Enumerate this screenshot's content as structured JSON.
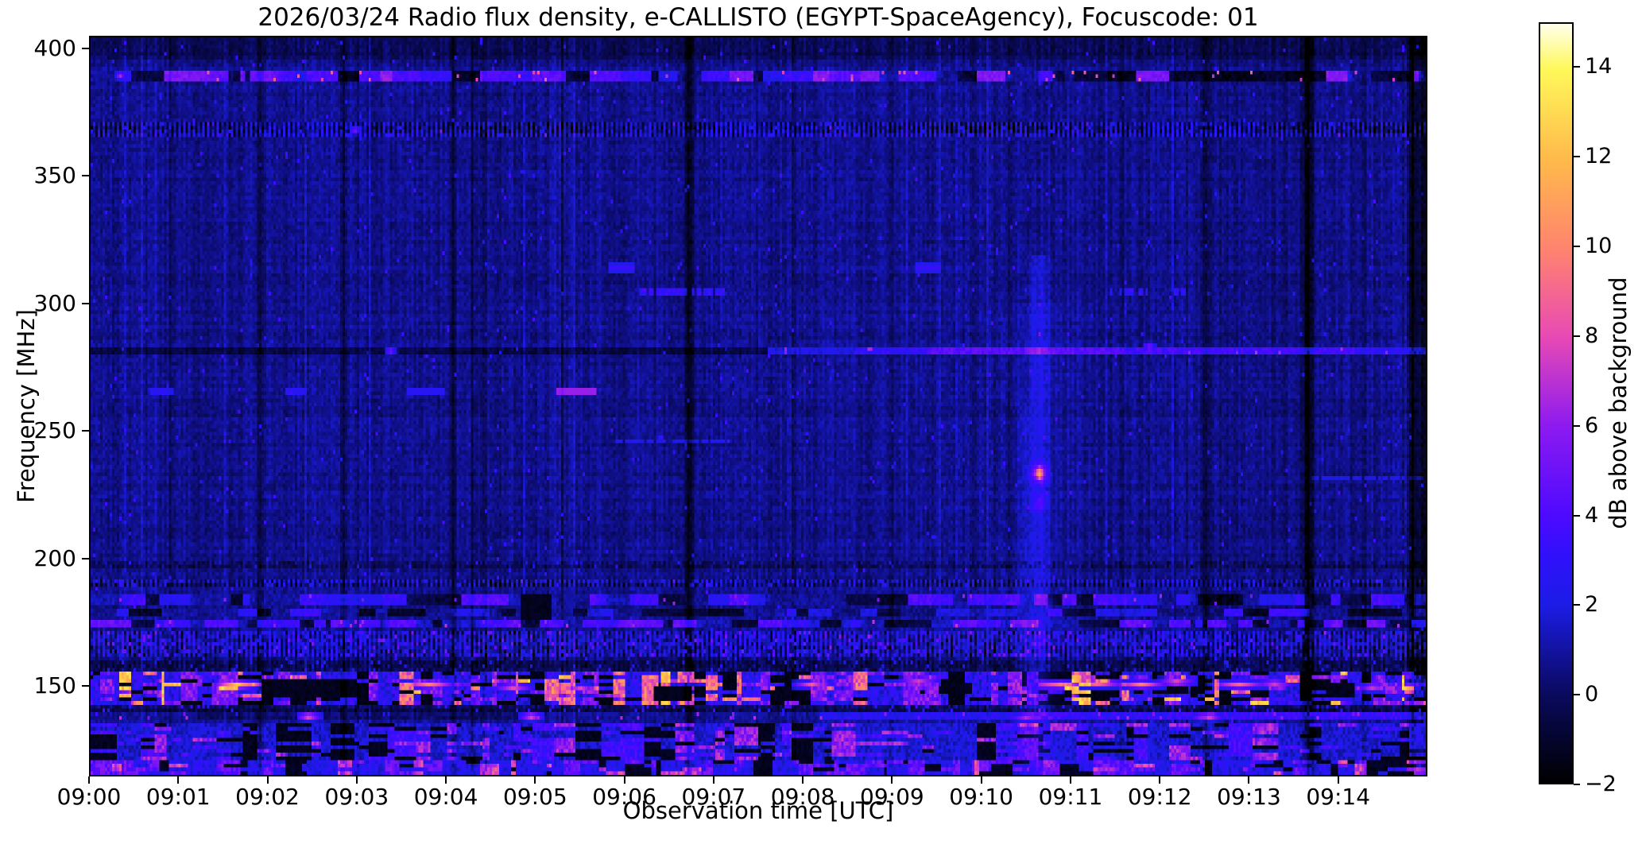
{
  "chart_data": {
    "type": "heatmap",
    "title": "2026/03/24  Radio flux density, e-CALLISTO (EGYPT-SpaceAgency), Focuscode: 01",
    "xlabel": "Observation time [UTC]",
    "ylabel": "Frequency [MHz]",
    "colorbar_label": "dB above background",
    "x_tick_labels": [
      "09:00",
      "09:01",
      "09:02",
      "09:03",
      "09:04",
      "09:05",
      "09:06",
      "09:07",
      "09:08",
      "09:09",
      "09:10",
      "09:11",
      "09:12",
      "09:13",
      "09:14"
    ],
    "x_range_minutes": [
      0,
      15
    ],
    "y_tick_values": [
      400,
      350,
      300,
      250,
      200,
      150
    ],
    "y_tick_labels": [
      "400",
      "350",
      "300",
      "250",
      "200",
      "150"
    ],
    "freq_range_mhz": [
      114.5,
      405
    ],
    "value_range_db": [
      -2,
      15
    ],
    "colorbar_tick_values": [
      14,
      12,
      10,
      8,
      6,
      4,
      2,
      0,
      -2
    ],
    "colorbar_tick_labels": [
      "14",
      "12",
      "10",
      "8",
      "6",
      "4",
      "2",
      "0",
      "−2"
    ],
    "grid": false,
    "colormap": {
      "name": "gnuplot2-like",
      "stops": [
        [
          0.0,
          "#000000"
        ],
        [
          0.118,
          "#0a0a5f"
        ],
        [
          0.235,
          "#1c1ce6"
        ],
        [
          0.3,
          "#3010fc"
        ],
        [
          0.353,
          "#4e0aff"
        ],
        [
          0.47,
          "#8c1af0"
        ],
        [
          0.588,
          "#e84ab4"
        ],
        [
          0.7,
          "#ff8270"
        ],
        [
          0.82,
          "#ffb94b"
        ],
        [
          0.94,
          "#fff85a"
        ],
        [
          1.0,
          "#ffffeb"
        ]
      ]
    },
    "noise": {
      "seed": 73,
      "base_db": 0.55,
      "cell_db": 0.5,
      "col_db": 0.4,
      "row_db": 0.2,
      "bright_speck_p": 0.01,
      "bright_speck_db": [
        2.2,
        3.8
      ],
      "top_dark_above_mhz": 397
    },
    "h_bands": [
      {
        "name": "band-390",
        "f": [
          387.5,
          392.5
        ],
        "type": "runs",
        "bright": [
          2.2,
          6.5
        ],
        "dim": [
          0.4,
          1.6
        ],
        "dark": [
          -1.8,
          -0.8
        ],
        "p_bright": 0.55,
        "p_dim": 0.25,
        "run_min": 0.04,
        "run_max": 0.38,
        "spike_p": 0.02,
        "spike": [
          7,
          9
        ],
        "dark_after_t": 8.8,
        "p_bright_late": 0.33
      },
      {
        "name": "comb-368",
        "f": [
          366,
          371
        ],
        "type": "comb",
        "even": 1.2,
        "odd": -1.2,
        "jitter": 1.1,
        "speck_p": 0.03,
        "speck": [
          2.5,
          4.5
        ]
      },
      {
        "name": "blobs-314",
        "f": [
          312.5,
          316
        ],
        "type": "dots",
        "t": [
          5.95,
          9.4
        ],
        "v": 3.4,
        "w": 0.12,
        "t_hot": [],
        "v_hot": 0
      },
      {
        "name": "dashes-304",
        "f": [
          302.8,
          305.6
        ],
        "type": "dash-seg",
        "segments": [
          [
            6.18,
            7.08
          ],
          [
            11.47,
            11.92
          ],
          [
            12.18,
            12.26
          ]
        ],
        "v": [
          2.8,
          4.2
        ],
        "gap_p": 0.3
      },
      {
        "name": "dark-281-left",
        "f": [
          280,
          283.5
        ],
        "type": "add-seg",
        "segments": [
          [
            0,
            7.6,
            -1.25
          ]
        ]
      },
      {
        "name": "line-281",
        "f": [
          280.2,
          282.8
        ],
        "type": "line",
        "segments": [
          [
            7.6,
            8.6,
            2.6
          ],
          [
            8.6,
            9.4,
            3.6
          ],
          [
            9.4,
            11.6,
            4.8
          ],
          [
            11.6,
            14.2,
            4.2
          ],
          [
            14.2,
            15,
            3.4
          ]
        ],
        "jitter": 0.7,
        "speck_p": 0.015,
        "speck": [
          6,
          7.5
        ]
      },
      {
        "name": "dots-265",
        "f": [
          263.5,
          266.5
        ],
        "type": "dots",
        "t": [
          0.73,
          0.84,
          2.25,
          2.35,
          3.6,
          3.75,
          3.9
        ],
        "v": 3.2,
        "w": 0.05,
        "t_hot": [
          5.3,
          5.45,
          5.6
        ],
        "v_hot": 6.8
      },
      {
        "name": "dashes-246",
        "f": [
          245,
          247.2
        ],
        "type": "dash-seg",
        "segments": [
          [
            5.9,
            7.15
          ]
        ],
        "v": [
          1.8,
          2.6
        ],
        "gap_p": 0.35
      },
      {
        "name": "dashes-231",
        "f": [
          230,
          232.5
        ],
        "type": "dash-seg",
        "segments": [
          [
            13.7,
            15
          ]
        ],
        "v": [
          1.8,
          2.4
        ],
        "gap_p": 0.25
      },
      {
        "name": "dark-197",
        "f": [
          196,
          198.5
        ],
        "type": "comb",
        "even": -0.55,
        "odd": -0.1,
        "jitter": 0.5,
        "speck_p": 0.02,
        "speck": [
          1.5,
          2.5
        ]
      },
      {
        "name": "comb-190",
        "f": [
          188,
          191.5
        ],
        "type": "comb",
        "even": 0.9,
        "odd": -0.9,
        "jitter": 0.9,
        "speck_p": 0.05,
        "speck": [
          2,
          3.5
        ]
      },
      {
        "name": "blobs-183",
        "f": [
          181.5,
          186
        ],
        "type": "runs",
        "bright": [
          2.2,
          4.4
        ],
        "dim": [
          0.5,
          1.4
        ],
        "dark": [
          -1.6,
          -0.6
        ],
        "p_bright": 0.5,
        "p_dim": 0.25,
        "run_min": 0.05,
        "run_max": 0.4,
        "spike_p": 0.01,
        "spike": [
          5.5,
          6.5
        ]
      },
      {
        "name": "blobs-178",
        "f": [
          176.5,
          180.5
        ],
        "type": "runs",
        "bright": [
          1.8,
          3.6
        ],
        "dim": [
          0.3,
          1.2
        ],
        "dark": [
          -1.7,
          -0.8
        ],
        "p_bright": 0.45,
        "p_dim": 0.3,
        "run_min": 0.06,
        "run_max": 0.45
      },
      {
        "name": "dashes-174",
        "f": [
          172.8,
          175.8
        ],
        "type": "runs",
        "bright": [
          2.8,
          5
        ],
        "dim": [
          0.8,
          1.8
        ],
        "dark": [
          -1.4,
          -0.4
        ],
        "p_bright": 0.55,
        "p_dim": 0.25,
        "run_min": 0.04,
        "run_max": 0.3,
        "spike_p": 0.02,
        "spike": [
          6,
          7.5
        ]
      },
      {
        "name": "comb-167",
        "f": [
          161.5,
          171.5
        ],
        "type": "comb",
        "even": 1.5,
        "odd": -0.3,
        "jitter": 1.3,
        "speck_p": 0.06,
        "speck": [
          3,
          5.5
        ]
      },
      {
        "name": "dark-158",
        "f": [
          155.5,
          161
        ],
        "type": "comb",
        "even": -0.4,
        "odd": -0.9,
        "jitter": 0.6,
        "speck_p": 0.04,
        "speck": [
          1.8,
          3.2
        ]
      },
      {
        "name": "hot-149",
        "f": [
          142.5,
          155
        ],
        "type": "mix",
        "weights": [
          [
            -1.8,
            -1.2,
            0.2
          ],
          [
            1.2,
            4,
            0.44
          ],
          [
            4,
            7,
            0.2
          ],
          [
            7,
            11,
            0.12
          ],
          [
            11,
            13.5,
            0.04
          ]
        ],
        "run_min": 0.03,
        "run_max": 0.22
      },
      {
        "name": "dark-140",
        "f": [
          139,
          142.5
        ],
        "type": "comb",
        "even": -0.8,
        "odd": -0.8,
        "jitter": 0.5,
        "speck_p": 0.05,
        "speck": [
          2,
          4
        ]
      },
      {
        "name": "line-137",
        "f": [
          135.8,
          138.8
        ],
        "type": "line",
        "segments": [
          [
            0,
            1.2,
            0.6
          ],
          [
            1.2,
            4.9,
            -0.5
          ],
          [
            4.9,
            8.2,
            0.8
          ],
          [
            8.2,
            10.4,
            3.0
          ],
          [
            10.4,
            12.5,
            3.6
          ],
          [
            12.5,
            15,
            3.8
          ]
        ],
        "jitter": 0.9,
        "speck_p": 0.03,
        "speck": [
          5,
          7
        ]
      },
      {
        "name": "noise-128",
        "f": [
          120.5,
          135.5
        ],
        "type": "mix",
        "weights": [
          [
            -1.7,
            -1.0,
            0.22
          ],
          [
            0.8,
            2.6,
            0.5
          ],
          [
            2.6,
            4.5,
            0.18
          ],
          [
            4.5,
            7.5,
            0.1
          ]
        ],
        "run_min": 0.04,
        "run_max": 0.3
      },
      {
        "name": "noise-117",
        "f": [
          114.5,
          120.5
        ],
        "type": "mix",
        "weights": [
          [
            -1.6,
            -0.9,
            0.15
          ],
          [
            1.4,
            3.4,
            0.5
          ],
          [
            3.4,
            6,
            0.25
          ],
          [
            6,
            9,
            0.1
          ]
        ],
        "run_min": 0.03,
        "run_max": 0.25
      }
    ],
    "hot_spots": [
      [
        1.65,
        150,
        13,
        0.22
      ],
      [
        3.8,
        150,
        10.5,
        0.28
      ],
      [
        4.75,
        149,
        9.5,
        0.2
      ],
      [
        5.5,
        148.5,
        8.5,
        0.15
      ],
      [
        8.1,
        150,
        9,
        0.2
      ],
      [
        9.3,
        151,
        9.5,
        0.22
      ],
      [
        10.9,
        150,
        10,
        0.25
      ],
      [
        11.3,
        150.5,
        11,
        0.3
      ],
      [
        11.8,
        150,
        10.5,
        0.25
      ],
      [
        12.2,
        151,
        10,
        0.2
      ],
      [
        12.9,
        150,
        9.5,
        0.3
      ],
      [
        13.3,
        150.5,
        9,
        0.2
      ],
      [
        14.4,
        149,
        8.5,
        0.2
      ],
      [
        2.45,
        137.5,
        10,
        0.12
      ],
      [
        4.95,
        137.5,
        9.5,
        0.12
      ],
      [
        12.55,
        137.5,
        10.5,
        0.14
      ],
      [
        10.5,
        137.3,
        6.5,
        0.18
      ],
      [
        2.97,
        368.5,
        7,
        0.05
      ],
      [
        0.33,
        390,
        7.5,
        0.05
      ],
      [
        3.37,
        281.5,
        6.8,
        0.05
      ],
      [
        11.9,
        283,
        7,
        0.06
      ]
    ],
    "black_patches": [
      [
        2.05,
        2.95,
        145,
        152
      ],
      [
        6.35,
        6.72,
        143,
        150
      ],
      [
        7.7,
        8.05,
        144,
        150
      ],
      [
        9.55,
        9.85,
        146,
        151
      ],
      [
        11.95,
        12.3,
        147,
        152
      ],
      [
        4.85,
        5.15,
        176,
        186
      ],
      [
        13.9,
        14.15,
        145,
        151
      ]
    ],
    "v_dark_lines": [
      [
        1.9,
        0.035,
        1.6
      ],
      [
        2.84,
        0.03,
        1.2
      ],
      [
        4.08,
        0.03,
        1.5
      ],
      [
        4.29,
        0.025,
        1.3
      ],
      [
        4.43,
        0.025,
        1.3
      ],
      [
        6.72,
        0.045,
        2.2
      ],
      [
        11.58,
        0.03,
        1.0
      ],
      [
        12.53,
        0.035,
        1.5
      ],
      [
        13.68,
        0.06,
        2.6
      ],
      [
        14.3,
        0.025,
        1.0
      ],
      [
        14.86,
        0.05,
        2.4
      ],
      [
        14.97,
        0.04,
        2.2
      ],
      [
        0.9,
        0.02,
        0.7
      ],
      [
        3.0,
        0.02,
        0.7
      ],
      [
        5.3,
        0.02,
        0.6
      ],
      [
        7.9,
        0.02,
        0.6
      ],
      [
        9.0,
        0.02,
        0.7
      ],
      [
        10.3,
        0.02,
        0.6
      ]
    ],
    "bright_columns": [
      [
        10.66,
        0.1,
        1.4,
        115,
        320
      ],
      [
        10.66,
        0.28,
        0.45,
        118,
        300
      ],
      [
        10.5,
        0.05,
        0.6,
        120,
        260
      ]
    ],
    "bright_blobs": [
      [
        10.66,
        233,
        4.8,
        0.09,
        228,
        240
      ],
      [
        10.66,
        233.5,
        6.5,
        0.04,
        231,
        236
      ],
      [
        10.66,
        222,
        2.2,
        0.08,
        216,
        228
      ]
    ],
    "right_dim": {
      "t": [
        12.56,
        13.64
      ],
      "f": [
        160,
        405
      ],
      "delta": -0.22
    }
  }
}
